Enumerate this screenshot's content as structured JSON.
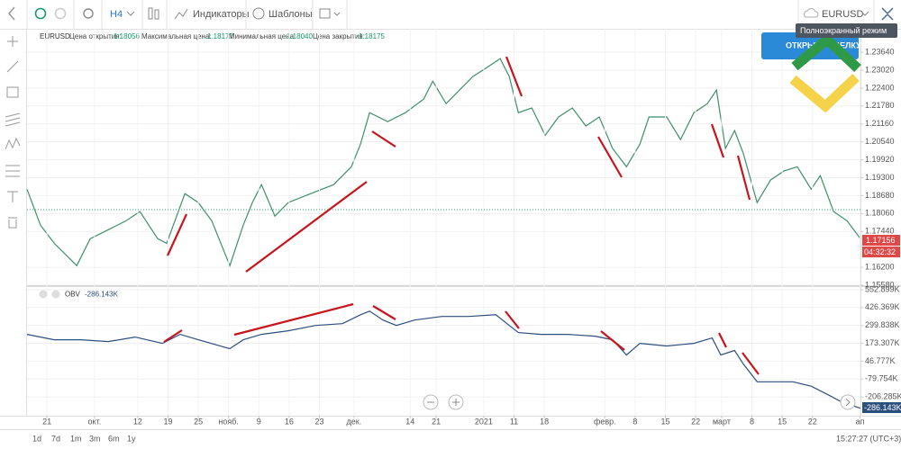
{
  "toolbar": {
    "timeframe": "H4",
    "indicators": "Индикаторы",
    "templates": "Шаблоны",
    "symbol": "EURUSD",
    "tooltip": "Полноэкранный режим",
    "trade_button": "ОТКРЫТЬ СДЕЛКУ"
  },
  "legend": {
    "symbol": "EURUSD",
    "open_label": "Цена открытия:",
    "open": "1.18056",
    "high_label": "Максимальная цена:",
    "high": "1.18177",
    "low_label": "Минимальная цена:",
    "low": "1.18040",
    "close_label": "Цена закрытия:",
    "close": "1.18175",
    "last_price": "1.17156",
    "countdown": "04:32:32"
  },
  "indicator": {
    "name": "OBV",
    "value": "-286.143K",
    "axis_label": "-286.143K"
  },
  "footer": {
    "ranges": [
      "1d",
      "7d",
      "1m",
      "3m",
      "6m",
      "1y"
    ],
    "clock": "15:27:27 (UTC+3)"
  },
  "chart_data": [
    {
      "type": "line",
      "color": "#3f8f6a",
      "x": [
        -4.6,
        -1.5,
        1.7,
        6.9,
        10,
        14.2,
        18.3,
        21.5,
        25.6,
        27.7,
        31.9,
        35,
        38.1,
        42.3,
        45.4,
        47.5,
        49.6,
        52.7,
        55.8,
        61,
        66.3,
        70.4,
        72.5,
        74.6,
        78.8,
        82.9,
        87.1,
        89.2,
        92.3,
        95.4,
        98.5,
        101.7,
        104.8,
        106.9,
        109,
        112.1,
        115.2,
        118.3,
        121.5,
        124.6,
        127.7,
        130.8,
        134,
        137.1,
        139.2,
        143.3,
        146.5,
        149.6,
        152.7,
        154.8,
        156.9,
        159,
        161,
        164.2,
        167.3,
        170.4,
        173.5,
        176.7,
        178.8,
        181.9,
        185,
        188.1
      ],
      "values": [
        1.189,
        1.1766,
        1.1703,
        1.1626,
        1.1719,
        1.175,
        1.1781,
        1.1813,
        1.1719,
        1.1703,
        1.1875,
        1.1844,
        1.1781,
        1.1626,
        1.1766,
        1.1844,
        1.1906,
        1.1797,
        1.1844,
        1.1875,
        1.1906,
        1.1968,
        1.2046,
        1.2155,
        1.2124,
        1.2155,
        1.2202,
        1.2264,
        1.2186,
        1.2233,
        1.228,
        1.2311,
        1.2342,
        1.228,
        1.2155,
        1.2171,
        1.2077,
        1.214,
        1.2171,
        1.2109,
        1.214,
        1.2031,
        1.1968,
        1.2046,
        1.214,
        1.214,
        1.2062,
        1.2155,
        1.2186,
        1.2233,
        1.2031,
        1.2093,
        1.2015,
        1.1844,
        1.1922,
        1.1953,
        1.1968,
        1.189,
        1.1937,
        1.1813,
        1.1781,
        1.1719
      ],
      "xlim": [
        -4.6,
        188.1
      ],
      "ylim": [
        1.1555,
        1.2445
      ],
      "yticks": [
        {
          "value": 1.2364,
          "label": "1.23640"
        },
        {
          "value": 1.2302,
          "label": "1.23020"
        },
        {
          "value": 1.224,
          "label": "1.22400"
        },
        {
          "value": 1.2178,
          "label": "1.21780"
        },
        {
          "value": 1.2116,
          "label": "1.21160"
        },
        {
          "value": 1.2054,
          "label": "1.20540"
        },
        {
          "value": 1.1992,
          "label": "1.19920"
        },
        {
          "value": 1.193,
          "label": "1.19300"
        },
        {
          "value": 1.1868,
          "label": "1.18680"
        },
        {
          "value": 1.1806,
          "label": "1.18060"
        },
        {
          "value": 1.1744,
          "label": "1.17440"
        },
        {
          "value": 1.162,
          "label": "1.16200"
        },
        {
          "value": 1.1558,
          "label": "1.15580"
        }
      ],
      "grid": true
    },
    {
      "type": "line",
      "color": "#2d4f7e",
      "x": [
        -4.6,
        1.7,
        7.9,
        14.2,
        20.4,
        26.7,
        30.8,
        35,
        42.3,
        45.4,
        49.6,
        55.8,
        62.1,
        68.3,
        72.5,
        74.6,
        77.7,
        80.8,
        85,
        91.3,
        97.5,
        103.8,
        106.9,
        109,
        114.2,
        120.4,
        126.7,
        130.8,
        134,
        137.1,
        143.3,
        149.6,
        153.8,
        155.8,
        159,
        161,
        164.2,
        168.3,
        172.5,
        176.7,
        180.8,
        183.9,
        188.1
      ],
      "values": [
        236.5,
        198.6,
        198.6,
        185.9,
        217.6,
        173.3,
        236.5,
        198.6,
        135.3,
        198.6,
        236.5,
        261.9,
        299.8,
        312.5,
        375.7,
        401.1,
        337.8,
        299.8,
        337.8,
        363.1,
        363.1,
        375.7,
        299.8,
        249.2,
        236.5,
        236.5,
        223.9,
        198.6,
        91.0,
        173.3,
        154.3,
        173.3,
        211.2,
        91.0,
        122.7,
        27.8,
        -98.8,
        -98.8,
        -98.8,
        -130.4,
        -193.7,
        -244.3,
        -286.1
      ],
      "xlim": [
        -4.6,
        188.1
      ],
      "ylim": [
        -339,
        578
      ],
      "yticks": [
        {
          "value": 552.899,
          "label": "552.899K"
        },
        {
          "value": 426.369,
          "label": "426.369K"
        },
        {
          "value": 299.838,
          "label": "299.838K"
        },
        {
          "value": 173.307,
          "label": "173.307K"
        },
        {
          "value": 46.777,
          "label": "46.777K"
        },
        {
          "value": -79.754,
          "label": "-79.754K"
        },
        {
          "value": -206.285,
          "label": "-206.285K"
        }
      ],
      "xticks": [
        {
          "value": 0,
          "label": "21"
        },
        {
          "value": 11,
          "label": "окт."
        },
        {
          "value": 21,
          "label": "12"
        },
        {
          "value": 28,
          "label": "19"
        },
        {
          "value": 35,
          "label": "25"
        },
        {
          "value": 42,
          "label": "нояб."
        },
        {
          "value": 49,
          "label": "9"
        },
        {
          "value": 56,
          "label": "16"
        },
        {
          "value": 63,
          "label": "23"
        },
        {
          "value": 71,
          "label": "дек."
        },
        {
          "value": 84,
          "label": "14"
        },
        {
          "value": 90,
          "label": "21"
        },
        {
          "value": 101,
          "label": "2021"
        },
        {
          "value": 108,
          "label": "11"
        },
        {
          "value": 115,
          "label": "18"
        },
        {
          "value": 129,
          "label": "февр."
        },
        {
          "value": 136,
          "label": "8"
        },
        {
          "value": 143,
          "label": "15"
        },
        {
          "value": 150,
          "label": "22"
        },
        {
          "value": 156,
          "label": "март"
        },
        {
          "value": 163,
          "label": "8"
        },
        {
          "value": 170,
          "label": "15"
        },
        {
          "value": 177,
          "label": "22"
        },
        {
          "value": 188,
          "label": "ап"
        }
      ],
      "grid": true
    }
  ]
}
